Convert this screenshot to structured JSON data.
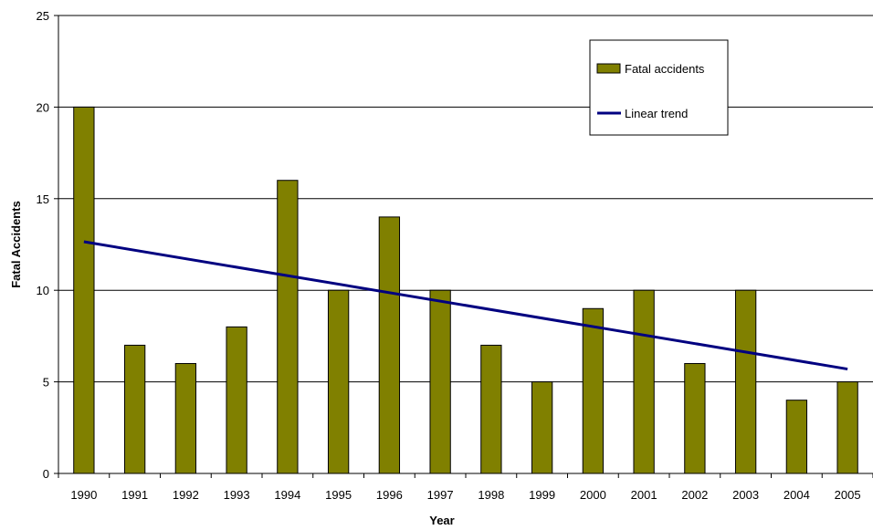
{
  "chart_data": {
    "type": "bar",
    "title": "",
    "xlabel": "Year",
    "ylabel": "Fatal Accidents",
    "categories": [
      "1990",
      "1991",
      "1992",
      "1993",
      "1994",
      "1995",
      "1996",
      "1997",
      "1998",
      "1999",
      "2000",
      "2001",
      "2002",
      "2003",
      "2004",
      "2005"
    ],
    "series": [
      {
        "name": "Fatal accidents",
        "type": "bar",
        "color": "#808000",
        "values": [
          20,
          7,
          6,
          8,
          16,
          10,
          14,
          10,
          7,
          5,
          9,
          10,
          6,
          10,
          4,
          5
        ]
      },
      {
        "name": "Linear trend",
        "type": "line",
        "color": "#000080",
        "start": {
          "x": "1990",
          "y": 12.65
        },
        "end": {
          "x": "2005",
          "y": 5.7
        }
      }
    ],
    "ylim": [
      0,
      25
    ],
    "yticks": [
      0,
      5,
      10,
      15,
      20,
      25
    ],
    "grid": true,
    "legend_position": "top-right"
  }
}
